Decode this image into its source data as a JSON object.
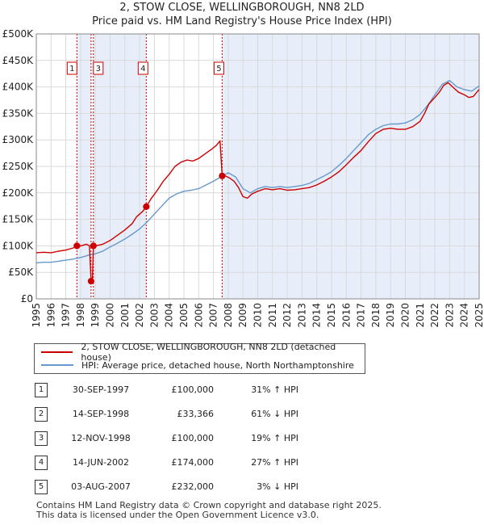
{
  "title_line1": "2, STOW CLOSE, WELLINGBOROUGH, NN8 2LD",
  "title_line2": "Price paid vs. HM Land Registry's House Price Index (HPI)",
  "colors": {
    "property": "#cc0000",
    "hpi": "#6699cc",
    "shade": "#e8eef9",
    "marker_line": "#cc0000"
  },
  "chart_data": {
    "type": "line",
    "title": "Price paid vs. HM Land Registry's House Price Index (HPI)",
    "xlim": [
      1995,
      2025
    ],
    "ylim": [
      0,
      500000
    ],
    "yticks": [
      {
        "value": 0,
        "label": "£0"
      },
      {
        "value": 50000,
        "label": "£50K"
      },
      {
        "value": 100000,
        "label": "£100K"
      },
      {
        "value": 150000,
        "label": "£150K"
      },
      {
        "value": 200000,
        "label": "£200K"
      },
      {
        "value": 250000,
        "label": "£250K"
      },
      {
        "value": 300000,
        "label": "£300K"
      },
      {
        "value": 350000,
        "label": "£350K"
      },
      {
        "value": 400000,
        "label": "£400K"
      },
      {
        "value": 450000,
        "label": "£450K"
      },
      {
        "value": 500000,
        "label": "£500K"
      }
    ],
    "xticks": [
      "1995",
      "1996",
      "1997",
      "1998",
      "1999",
      "2000",
      "2001",
      "2002",
      "2003",
      "2004",
      "2005",
      "2006",
      "2007",
      "2008",
      "2009",
      "2010",
      "2011",
      "2012",
      "2013",
      "2014",
      "2015",
      "2016",
      "2017",
      "2018",
      "2019",
      "2020",
      "2021",
      "2022",
      "2023",
      "2024",
      "2025"
    ],
    "shaded_periods": [
      [
        1997.75,
        1998.71
      ],
      [
        1998.87,
        2002.45
      ],
      [
        2007.59,
        2025.0
      ]
    ],
    "transactions": [
      {
        "id": "1",
        "x": 1997.75,
        "price": 100000
      },
      {
        "id": "2",
        "x": 1998.71,
        "price": 33366
      },
      {
        "id": "3",
        "x": 1998.87,
        "price": 100000
      },
      {
        "id": "4",
        "x": 2002.45,
        "price": 174000
      },
      {
        "id": "5",
        "x": 2007.59,
        "price": 232000
      }
    ],
    "series": [
      {
        "name": "2, STOW CLOSE, WELLINGBOROUGH, NN8 2LD (detached house)",
        "color": "#cc0000",
        "points": [
          [
            1995.0,
            87000
          ],
          [
            1995.5,
            88000
          ],
          [
            1996.0,
            87000
          ],
          [
            1996.5,
            90000
          ],
          [
            1997.0,
            92000
          ],
          [
            1997.5,
            96000
          ],
          [
            1997.75,
            100000
          ],
          [
            1998.0,
            100000
          ],
          [
            1998.4,
            103000
          ],
          [
            1998.6,
            100000
          ],
          [
            1998.71,
            33366
          ],
          [
            1998.8,
            33366
          ],
          [
            1998.87,
            100000
          ],
          [
            1999.0,
            100000
          ],
          [
            1999.5,
            103000
          ],
          [
            2000.0,
            110000
          ],
          [
            2000.5,
            120000
          ],
          [
            2001.0,
            130000
          ],
          [
            2001.5,
            142000
          ],
          [
            2001.8,
            155000
          ],
          [
            2002.2,
            165000
          ],
          [
            2002.45,
            174000
          ],
          [
            2002.8,
            190000
          ],
          [
            2003.2,
            205000
          ],
          [
            2003.6,
            222000
          ],
          [
            2004.0,
            235000
          ],
          [
            2004.4,
            250000
          ],
          [
            2004.8,
            258000
          ],
          [
            2005.2,
            262000
          ],
          [
            2005.6,
            260000
          ],
          [
            2006.0,
            265000
          ],
          [
            2006.5,
            275000
          ],
          [
            2006.9,
            283000
          ],
          [
            2007.2,
            290000
          ],
          [
            2007.45,
            298000
          ],
          [
            2007.59,
            232000
          ],
          [
            2007.8,
            232000
          ],
          [
            2008.1,
            228000
          ],
          [
            2008.4,
            222000
          ],
          [
            2008.7,
            210000
          ],
          [
            2009.0,
            193000
          ],
          [
            2009.3,
            190000
          ],
          [
            2009.6,
            198000
          ],
          [
            2010.0,
            203000
          ],
          [
            2010.5,
            208000
          ],
          [
            2011.0,
            206000
          ],
          [
            2011.5,
            208000
          ],
          [
            2012.0,
            205000
          ],
          [
            2012.5,
            206000
          ],
          [
            2013.0,
            208000
          ],
          [
            2013.5,
            210000
          ],
          [
            2014.0,
            215000
          ],
          [
            2014.5,
            222000
          ],
          [
            2015.0,
            230000
          ],
          [
            2015.5,
            240000
          ],
          [
            2016.0,
            253000
          ],
          [
            2016.5,
            267000
          ],
          [
            2017.0,
            280000
          ],
          [
            2017.5,
            297000
          ],
          [
            2018.0,
            312000
          ],
          [
            2018.5,
            320000
          ],
          [
            2019.0,
            322000
          ],
          [
            2019.5,
            320000
          ],
          [
            2020.0,
            320000
          ],
          [
            2020.5,
            325000
          ],
          [
            2021.0,
            335000
          ],
          [
            2021.3,
            350000
          ],
          [
            2021.6,
            368000
          ],
          [
            2022.0,
            380000
          ],
          [
            2022.3,
            390000
          ],
          [
            2022.6,
            403000
          ],
          [
            2022.9,
            408000
          ],
          [
            2023.2,
            400000
          ],
          [
            2023.6,
            390000
          ],
          [
            2024.0,
            385000
          ],
          [
            2024.3,
            380000
          ],
          [
            2024.6,
            382000
          ],
          [
            2024.9,
            392000
          ],
          [
            2025.0,
            395000
          ]
        ]
      },
      {
        "name": "HPI: Average price, detached house, North Northamptonshire",
        "color": "#6699cc",
        "points": [
          [
            1995.0,
            68000
          ],
          [
            1995.5,
            69000
          ],
          [
            1996.0,
            69000
          ],
          [
            1996.5,
            71000
          ],
          [
            1997.0,
            73000
          ],
          [
            1997.5,
            75000
          ],
          [
            1998.0,
            78000
          ],
          [
            1998.5,
            82000
          ],
          [
            1999.0,
            85000
          ],
          [
            1999.5,
            90000
          ],
          [
            2000.0,
            98000
          ],
          [
            2000.5,
            105000
          ],
          [
            2001.0,
            113000
          ],
          [
            2001.5,
            122000
          ],
          [
            2002.0,
            132000
          ],
          [
            2002.5,
            145000
          ],
          [
            2003.0,
            160000
          ],
          [
            2003.5,
            175000
          ],
          [
            2004.0,
            190000
          ],
          [
            2004.5,
            198000
          ],
          [
            2005.0,
            203000
          ],
          [
            2005.5,
            205000
          ],
          [
            2006.0,
            208000
          ],
          [
            2006.5,
            215000
          ],
          [
            2007.0,
            222000
          ],
          [
            2007.5,
            230000
          ],
          [
            2008.0,
            238000
          ],
          [
            2008.5,
            230000
          ],
          [
            2009.0,
            208000
          ],
          [
            2009.5,
            200000
          ],
          [
            2010.0,
            208000
          ],
          [
            2010.5,
            212000
          ],
          [
            2011.0,
            210000
          ],
          [
            2011.5,
            212000
          ],
          [
            2012.0,
            210000
          ],
          [
            2012.5,
            212000
          ],
          [
            2013.0,
            214000
          ],
          [
            2013.5,
            218000
          ],
          [
            2014.0,
            225000
          ],
          [
            2014.5,
            232000
          ],
          [
            2015.0,
            240000
          ],
          [
            2015.5,
            252000
          ],
          [
            2016.0,
            265000
          ],
          [
            2016.5,
            280000
          ],
          [
            2017.0,
            295000
          ],
          [
            2017.5,
            310000
          ],
          [
            2018.0,
            320000
          ],
          [
            2018.5,
            327000
          ],
          [
            2019.0,
            330000
          ],
          [
            2019.5,
            330000
          ],
          [
            2020.0,
            332000
          ],
          [
            2020.5,
            338000
          ],
          [
            2021.0,
            348000
          ],
          [
            2021.5,
            365000
          ],
          [
            2022.0,
            385000
          ],
          [
            2022.5,
            405000
          ],
          [
            2023.0,
            412000
          ],
          [
            2023.5,
            400000
          ],
          [
            2024.0,
            395000
          ],
          [
            2024.5,
            392000
          ],
          [
            2025.0,
            402000
          ]
        ]
      }
    ]
  },
  "legend": [
    {
      "label": "2, STOW CLOSE, WELLINGBOROUGH, NN8 2LD (detached house)",
      "color": "#cc0000"
    },
    {
      "label": "HPI: Average price, detached house, North Northamptonshire",
      "color": "#6699cc"
    }
  ],
  "table": [
    {
      "num": "1",
      "date": "30-SEP-1997",
      "price": "£100,000",
      "hpi": "31% ↑ HPI"
    },
    {
      "num": "2",
      "date": "14-SEP-1998",
      "price": "£33,366",
      "hpi": "61% ↓ HPI"
    },
    {
      "num": "3",
      "date": "12-NOV-1998",
      "price": "£100,000",
      "hpi": "19% ↑ HPI"
    },
    {
      "num": "4",
      "date": "14-JUN-2002",
      "price": "£174,000",
      "hpi": "27% ↑ HPI"
    },
    {
      "num": "5",
      "date": "03-AUG-2007",
      "price": "£232,000",
      "hpi": "3% ↓ HPI"
    }
  ],
  "footer_line1": "Contains HM Land Registry data © Crown copyright and database right 2025.",
  "footer_line2": "This data is licensed under the Open Government Licence v3.0."
}
